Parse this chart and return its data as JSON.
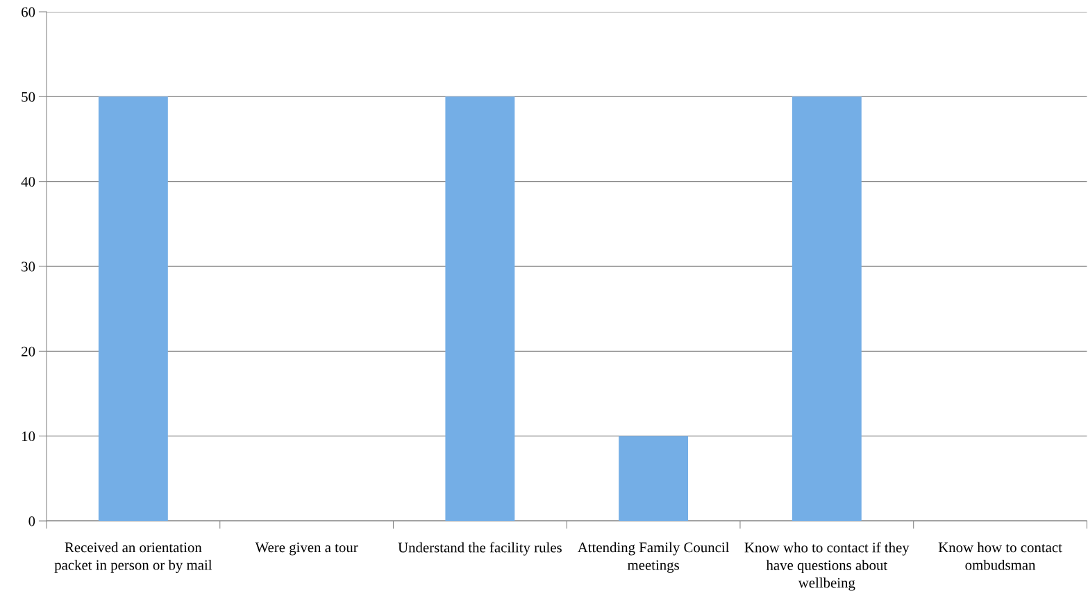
{
  "chart_data": {
    "type": "bar",
    "categories": [
      "Received an orientation packet in person or by mail",
      "Were given a tour",
      "Understand the facility rules",
      "Attending Family Council meetings",
      "Know who to contact if they have questions about wellbeing",
      "Know how to contact ombudsman"
    ],
    "values": [
      50,
      0,
      50,
      10,
      50,
      0
    ],
    "color": "#74aee6",
    "ylim": [
      0,
      60
    ],
    "yticks": [
      0,
      10,
      20,
      30,
      40,
      50,
      60
    ],
    "grid": "y"
  }
}
